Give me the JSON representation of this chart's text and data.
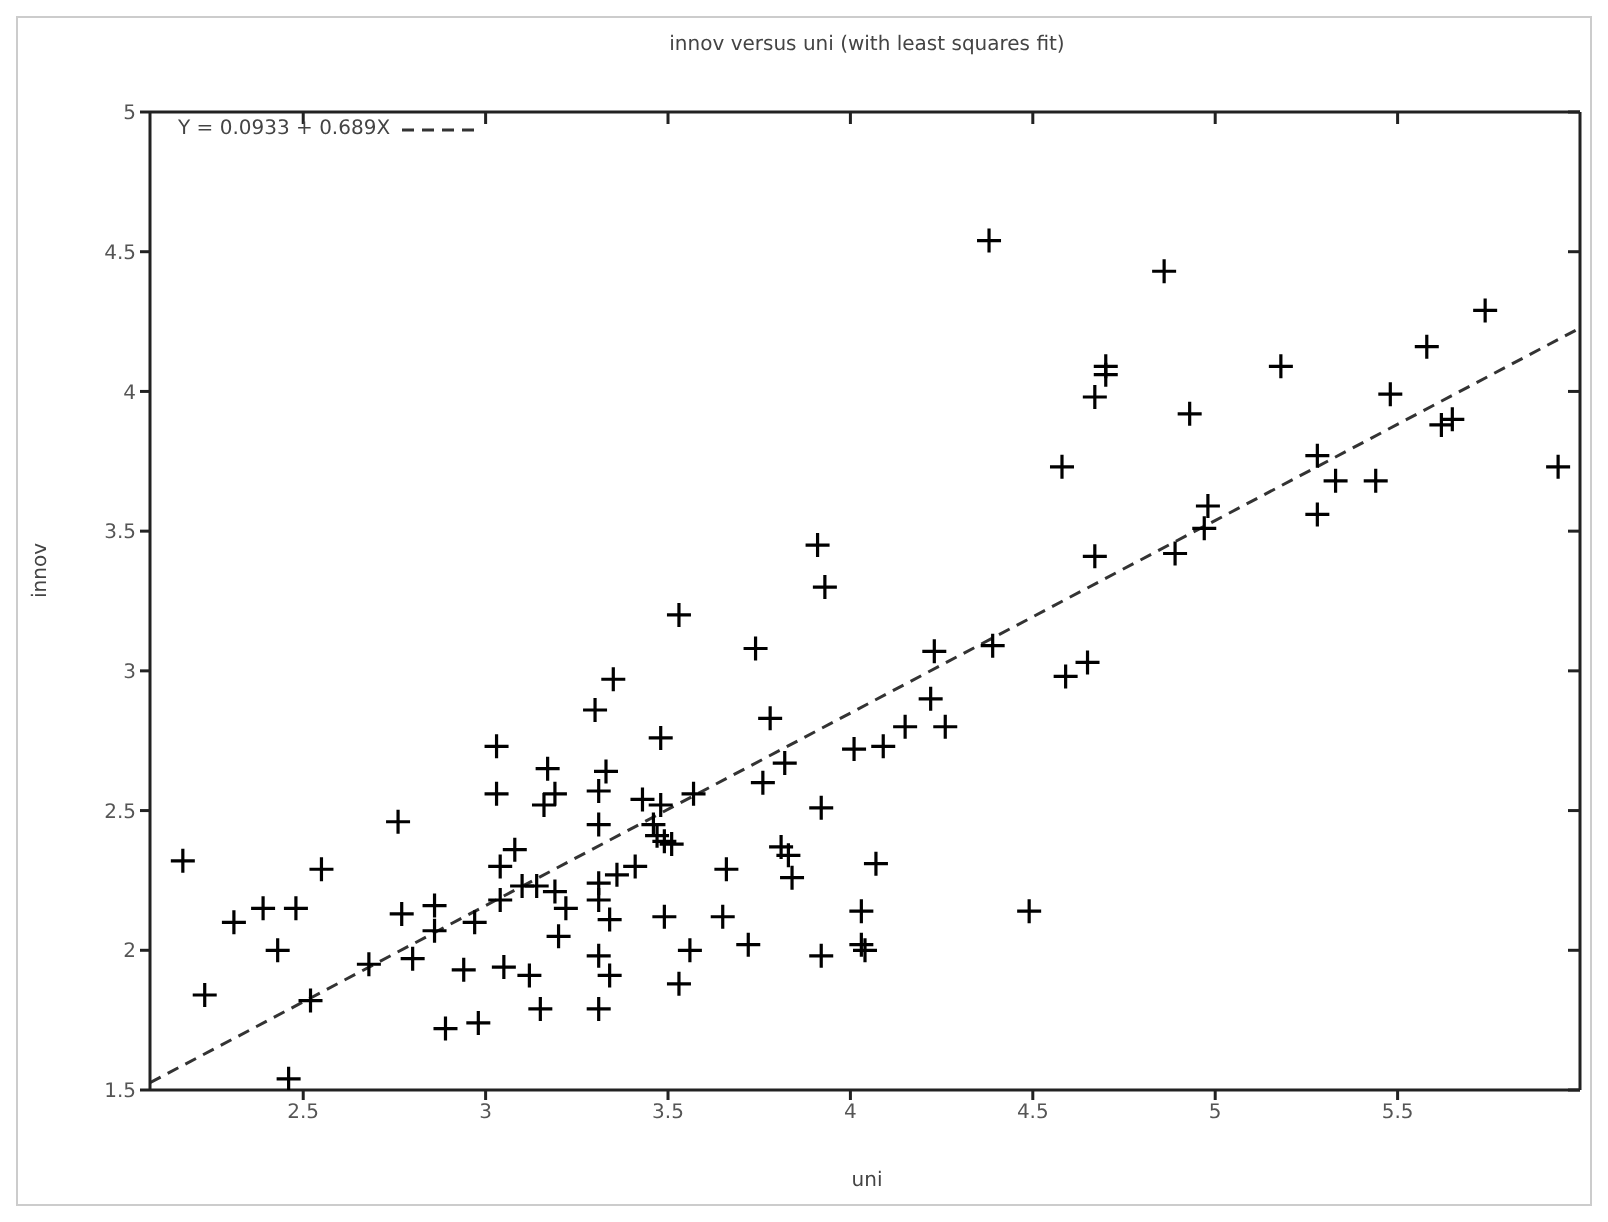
{
  "chart_data": {
    "type": "scatter",
    "title": "innov versus uni (with least squares fit)",
    "xlabel": "uni",
    "ylabel": "innov",
    "xlim": [
      2.08,
      6.0
    ],
    "ylim": [
      1.5,
      5
    ],
    "xticks": [
      2.5,
      3,
      3.5,
      4,
      4.5,
      5,
      5.5
    ],
    "yticks": [
      1.5,
      2,
      2.5,
      3,
      3.5,
      4,
      4.5,
      5
    ],
    "legend": "top left",
    "marker": "cross",
    "series": [
      {
        "color": "#000000",
        "x": [
          3.53,
          3.74,
          3.35,
          3.3,
          3.78,
          3.03,
          3.48,
          3.17,
          3.33,
          3.82,
          3.76,
          3.03,
          3.19,
          3.16,
          3.31,
          3.43,
          3.48,
          3.57,
          3.92,
          2.76,
          3.31,
          3.46,
          3.47,
          3.49,
          3.51,
          2.17,
          3.08,
          3.81,
          3.83,
          3.84,
          2.55,
          3.04,
          3.41,
          3.66,
          3.36,
          3.1,
          3.14,
          3.19,
          3.31,
          2.39,
          2.48,
          2.86,
          3.04,
          3.22,
          3.31,
          2.31,
          2.77,
          3.34,
          3.49,
          3.65,
          2.97,
          2.86,
          3.2,
          2.43,
          3.31,
          3.56,
          3.72,
          3.92,
          2.68,
          2.8,
          2.94,
          3.05,
          3.12,
          3.34,
          3.53,
          2.23,
          2.52,
          3.15,
          3.31,
          2.89,
          2.98,
          2.46,
          4.38,
          4.86,
          5.74,
          5.58,
          5.18,
          4.7,
          4.7,
          4.67,
          5.48,
          4.93,
          5.62,
          5.65,
          4.58,
          5.94,
          5.28,
          5.33,
          5.44,
          4.98,
          4.97,
          5.28,
          4.67,
          4.89,
          3.91,
          3.93,
          4.23,
          4.39,
          4.65,
          4.59,
          4.22,
          4.15,
          4.26,
          4.01,
          4.09,
          4.07,
          4.03,
          4.49,
          4.03,
          4.04
        ],
        "values": [
          3.2,
          3.08,
          2.97,
          2.86,
          2.83,
          2.73,
          2.76,
          2.65,
          2.64,
          2.67,
          2.6,
          2.56,
          2.56,
          2.52,
          2.57,
          2.54,
          2.52,
          2.56,
          2.51,
          2.46,
          2.45,
          2.45,
          2.41,
          2.39,
          2.38,
          2.32,
          2.36,
          2.37,
          2.34,
          2.26,
          2.29,
          2.3,
          2.3,
          2.29,
          2.27,
          2.23,
          2.23,
          2.21,
          2.24,
          2.15,
          2.15,
          2.16,
          2.18,
          2.15,
          2.18,
          2.1,
          2.13,
          2.11,
          2.12,
          2.12,
          2.1,
          2.07,
          2.05,
          2.0,
          1.98,
          2.0,
          2.02,
          1.98,
          1.95,
          1.97,
          1.93,
          1.94,
          1.91,
          1.91,
          1.88,
          1.84,
          1.82,
          1.79,
          1.79,
          1.72,
          1.74,
          1.54,
          4.54,
          4.43,
          4.29,
          4.16,
          4.09,
          4.09,
          4.06,
          3.98,
          3.99,
          3.92,
          3.88,
          3.9,
          3.73,
          3.73,
          3.77,
          3.68,
          3.68,
          3.59,
          3.51,
          3.56,
          3.41,
          3.42,
          3.45,
          3.3,
          3.07,
          3.09,
          3.03,
          2.98,
          2.9,
          2.8,
          2.8,
          2.72,
          2.73,
          2.31,
          2.14,
          2.14,
          2.02,
          2.0
        ]
      },
      {
        "type": "line",
        "name": "Y = 0.0933 + 0.689X",
        "color": "#333333",
        "line_style": "dashed",
        "marker": "none",
        "x": [
          2.08,
          6.0
        ],
        "values": [
          1.526,
          4.227
        ]
      }
    ]
  }
}
